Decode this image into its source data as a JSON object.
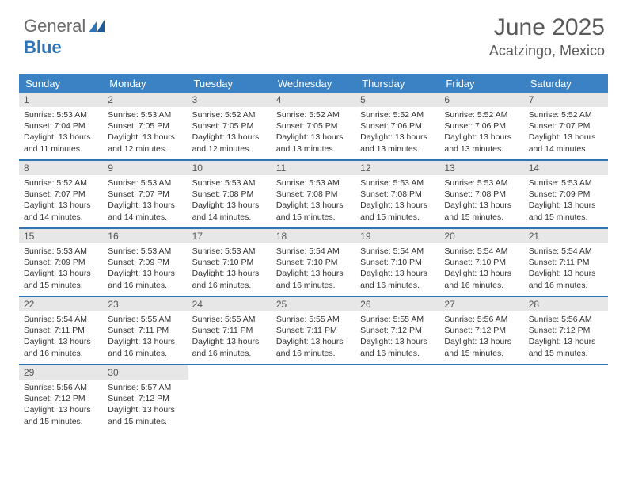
{
  "brand": {
    "part1": "General",
    "part2": "Blue"
  },
  "header": {
    "title": "June 2025",
    "location": "Acatzingo, Mexico"
  },
  "colors": {
    "header_bar": "#3b82c4",
    "rule": "#2f74b5",
    "daynum_bg": "#e7e7e7",
    "text": "#333333",
    "brand_gray": "#6b6b6b",
    "brand_blue": "#2f74b5"
  },
  "dow": [
    "Sunday",
    "Monday",
    "Tuesday",
    "Wednesday",
    "Thursday",
    "Friday",
    "Saturday"
  ],
  "days": [
    {
      "n": 1,
      "sr": "5:53 AM",
      "ss": "7:04 PM",
      "dh": 13,
      "dm": 11
    },
    {
      "n": 2,
      "sr": "5:53 AM",
      "ss": "7:05 PM",
      "dh": 13,
      "dm": 12
    },
    {
      "n": 3,
      "sr": "5:52 AM",
      "ss": "7:05 PM",
      "dh": 13,
      "dm": 12
    },
    {
      "n": 4,
      "sr": "5:52 AM",
      "ss": "7:05 PM",
      "dh": 13,
      "dm": 13
    },
    {
      "n": 5,
      "sr": "5:52 AM",
      "ss": "7:06 PM",
      "dh": 13,
      "dm": 13
    },
    {
      "n": 6,
      "sr": "5:52 AM",
      "ss": "7:06 PM",
      "dh": 13,
      "dm": 13
    },
    {
      "n": 7,
      "sr": "5:52 AM",
      "ss": "7:07 PM",
      "dh": 13,
      "dm": 14
    },
    {
      "n": 8,
      "sr": "5:52 AM",
      "ss": "7:07 PM",
      "dh": 13,
      "dm": 14
    },
    {
      "n": 9,
      "sr": "5:53 AM",
      "ss": "7:07 PM",
      "dh": 13,
      "dm": 14
    },
    {
      "n": 10,
      "sr": "5:53 AM",
      "ss": "7:08 PM",
      "dh": 13,
      "dm": 14
    },
    {
      "n": 11,
      "sr": "5:53 AM",
      "ss": "7:08 PM",
      "dh": 13,
      "dm": 15
    },
    {
      "n": 12,
      "sr": "5:53 AM",
      "ss": "7:08 PM",
      "dh": 13,
      "dm": 15
    },
    {
      "n": 13,
      "sr": "5:53 AM",
      "ss": "7:08 PM",
      "dh": 13,
      "dm": 15
    },
    {
      "n": 14,
      "sr": "5:53 AM",
      "ss": "7:09 PM",
      "dh": 13,
      "dm": 15
    },
    {
      "n": 15,
      "sr": "5:53 AM",
      "ss": "7:09 PM",
      "dh": 13,
      "dm": 15
    },
    {
      "n": 16,
      "sr": "5:53 AM",
      "ss": "7:09 PM",
      "dh": 13,
      "dm": 16
    },
    {
      "n": 17,
      "sr": "5:53 AM",
      "ss": "7:10 PM",
      "dh": 13,
      "dm": 16
    },
    {
      "n": 18,
      "sr": "5:54 AM",
      "ss": "7:10 PM",
      "dh": 13,
      "dm": 16
    },
    {
      "n": 19,
      "sr": "5:54 AM",
      "ss": "7:10 PM",
      "dh": 13,
      "dm": 16
    },
    {
      "n": 20,
      "sr": "5:54 AM",
      "ss": "7:10 PM",
      "dh": 13,
      "dm": 16
    },
    {
      "n": 21,
      "sr": "5:54 AM",
      "ss": "7:11 PM",
      "dh": 13,
      "dm": 16
    },
    {
      "n": 22,
      "sr": "5:54 AM",
      "ss": "7:11 PM",
      "dh": 13,
      "dm": 16
    },
    {
      "n": 23,
      "sr": "5:55 AM",
      "ss": "7:11 PM",
      "dh": 13,
      "dm": 16
    },
    {
      "n": 24,
      "sr": "5:55 AM",
      "ss": "7:11 PM",
      "dh": 13,
      "dm": 16
    },
    {
      "n": 25,
      "sr": "5:55 AM",
      "ss": "7:11 PM",
      "dh": 13,
      "dm": 16
    },
    {
      "n": 26,
      "sr": "5:55 AM",
      "ss": "7:12 PM",
      "dh": 13,
      "dm": 16
    },
    {
      "n": 27,
      "sr": "5:56 AM",
      "ss": "7:12 PM",
      "dh": 13,
      "dm": 15
    },
    {
      "n": 28,
      "sr": "5:56 AM",
      "ss": "7:12 PM",
      "dh": 13,
      "dm": 15
    },
    {
      "n": 29,
      "sr": "5:56 AM",
      "ss": "7:12 PM",
      "dh": 13,
      "dm": 15
    },
    {
      "n": 30,
      "sr": "5:57 AM",
      "ss": "7:12 PM",
      "dh": 13,
      "dm": 15
    }
  ],
  "labels": {
    "sunrise_prefix": "Sunrise: ",
    "sunset_prefix": "Sunset: ",
    "daylight_prefix": "Daylight: ",
    "hours_word": " hours",
    "and_word": "and ",
    "minutes_word": " minutes."
  },
  "layout": {
    "columns": 7,
    "start_weekday": 0,
    "total_cells": 35
  }
}
